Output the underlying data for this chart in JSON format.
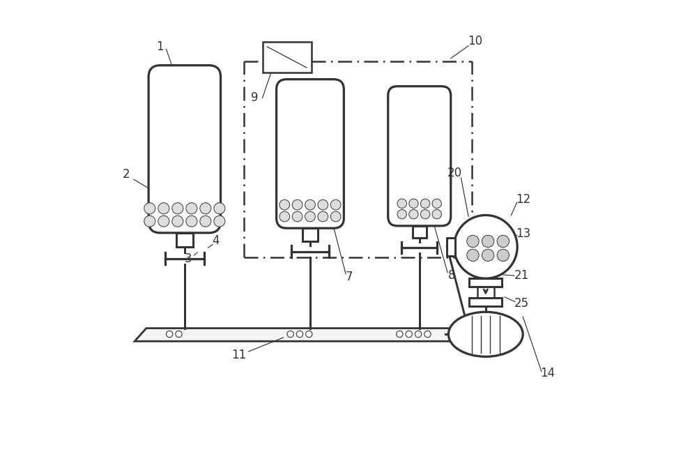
{
  "bg_color": "#ffffff",
  "line_color": "#333333",
  "label_color": "#333333",
  "fig_width": 10.0,
  "fig_height": 6.81
}
